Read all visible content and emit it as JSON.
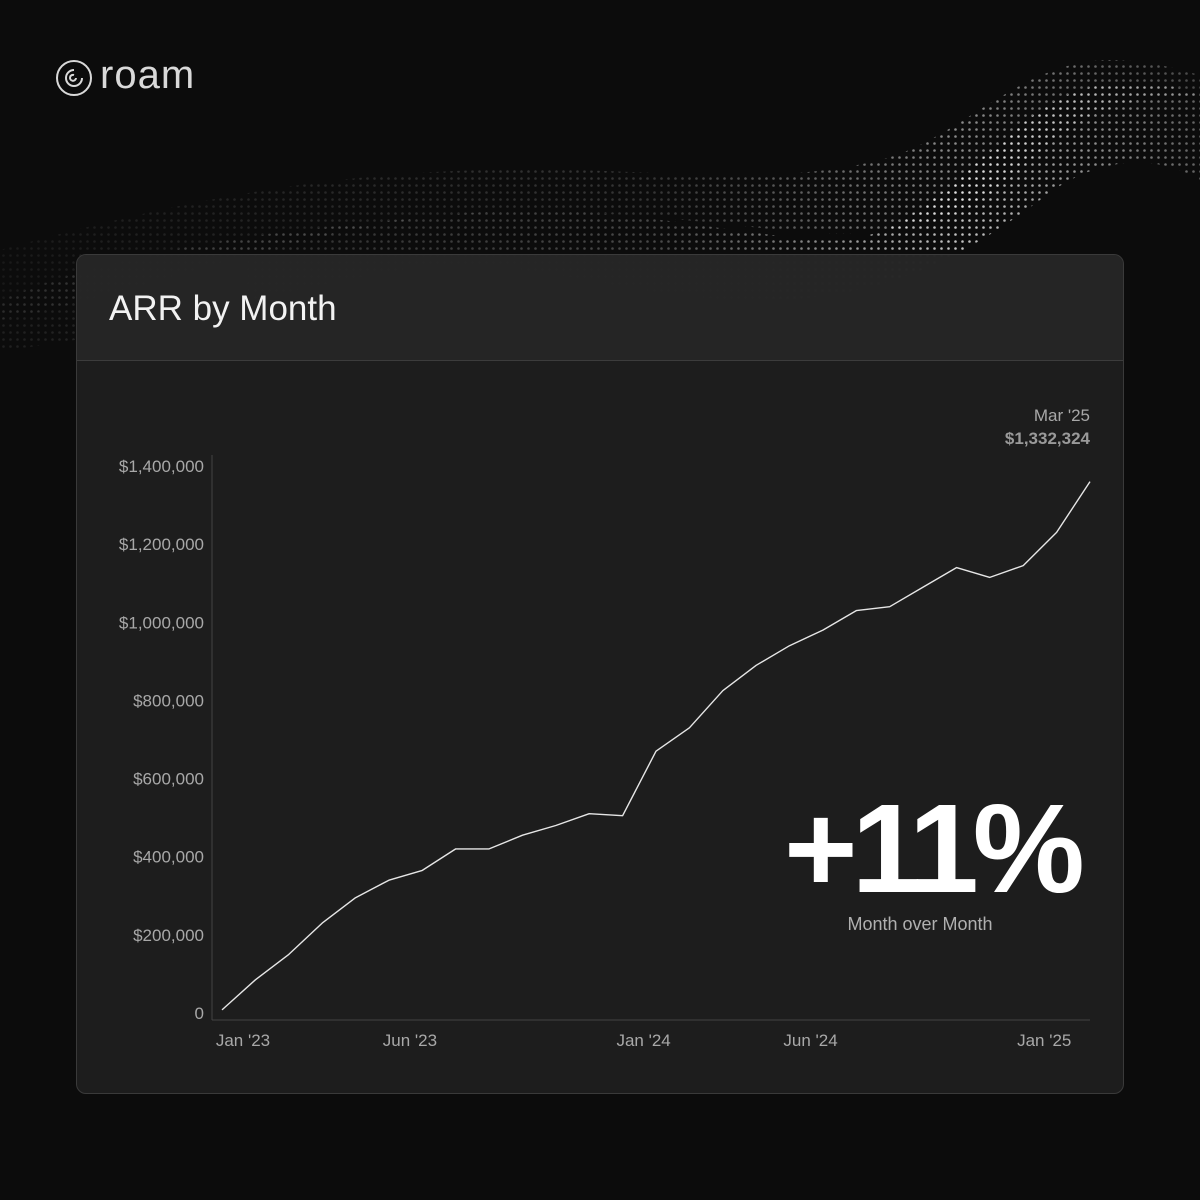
{
  "brand": {
    "logo_text": "roam",
    "logo_icon": "roam-swirl-icon"
  },
  "card": {
    "title": "ARR by Month"
  },
  "highlight": {
    "label": "Mar '25",
    "value": "$1,332,324"
  },
  "stat": {
    "value": "+11%",
    "label": "Month over Month"
  },
  "colors": {
    "background": "#0c0c0c",
    "card": "#1e1e1e",
    "line": "#e6e6e6",
    "text": "#f2f2f2"
  },
  "chart_data": {
    "type": "line",
    "title": "ARR by Month",
    "x_ticks": [
      "Jan '23",
      "Jun '23",
      "Jan '24",
      "Jun '24",
      "Jan '25"
    ],
    "x_tick_months": [
      "2023-01",
      "2023-06",
      "2024-01",
      "2024-06",
      "2025-01"
    ],
    "y_ticks": [
      "0",
      "$200,000",
      "$400,000",
      "$600,000",
      "$800,000",
      "$1,000,000",
      "$1,200,000",
      "$1,400,000"
    ],
    "y_tick_values": [
      0,
      200000,
      400000,
      600000,
      800000,
      1000000,
      1200000,
      1400000
    ],
    "ylim": [
      0,
      1400000
    ],
    "grid": false,
    "series": [
      {
        "x": [
          "2023-01",
          "2023-02",
          "2023-03",
          "2023-04",
          "2023-05",
          "2023-06",
          "2023-07",
          "2023-08",
          "2023-09",
          "2023-10",
          "2023-11",
          "2023-12",
          "2024-01",
          "2024-02",
          "2024-03",
          "2024-04",
          "2024-05",
          "2024-06",
          "2024-07",
          "2024-08",
          "2024-09",
          "2024-10",
          "2024-11",
          "2024-12",
          "2025-01",
          "2025-02",
          "2025-03"
        ],
        "values": [
          8000,
          85000,
          150000,
          230000,
          295000,
          340000,
          365000,
          420000,
          420000,
          455000,
          480000,
          510000,
          505000,
          670000,
          730000,
          825000,
          890000,
          940000,
          980000,
          1030000,
          1040000,
          1090000,
          1140000,
          1115000,
          1145000,
          1230000,
          1360000
        ]
      }
    ]
  }
}
